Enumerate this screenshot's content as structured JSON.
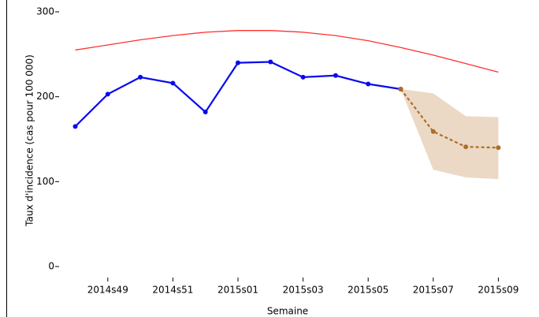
{
  "chart_data": {
    "type": "line",
    "x_label": "Semaine",
    "y_label": "Taux d'incidence (cas pour 100 000)",
    "categories": [
      null,
      "2014s49",
      null,
      "2014s51",
      null,
      "2015s01",
      null,
      "2015s03",
      null,
      "2015s05",
      null,
      "2015s07",
      null,
      "2015s09"
    ],
    "series": [
      {
        "color": "#ff3030",
        "markers": false,
        "dashed": false,
        "values": [
          255,
          261,
          267,
          272,
          276,
          278,
          278,
          276,
          272,
          266,
          258,
          249,
          239,
          229
        ]
      },
      {
        "color": "#0a0aee",
        "markers": true,
        "dashed": false,
        "values": [
          165,
          203,
          223,
          216,
          182,
          240,
          241,
          223,
          225,
          215,
          209,
          null,
          null,
          null
        ]
      },
      {
        "color": "#b06c28",
        "markers": true,
        "dashed": true,
        "values": [
          null,
          null,
          null,
          null,
          null,
          null,
          null,
          null,
          null,
          null,
          209,
          159,
          141,
          140
        ]
      }
    ],
    "band": {
      "color": "#e8d2bc",
      "upper": [
        null,
        null,
        null,
        null,
        null,
        null,
        null,
        null,
        null,
        null,
        209,
        204,
        177,
        176
      ],
      "lower": [
        null,
        null,
        null,
        null,
        null,
        null,
        null,
        null,
        null,
        null,
        209,
        114,
        105,
        103
      ]
    },
    "ylim": [
      0,
      300
    ],
    "yticks": [
      0,
      100,
      200,
      300
    ]
  }
}
